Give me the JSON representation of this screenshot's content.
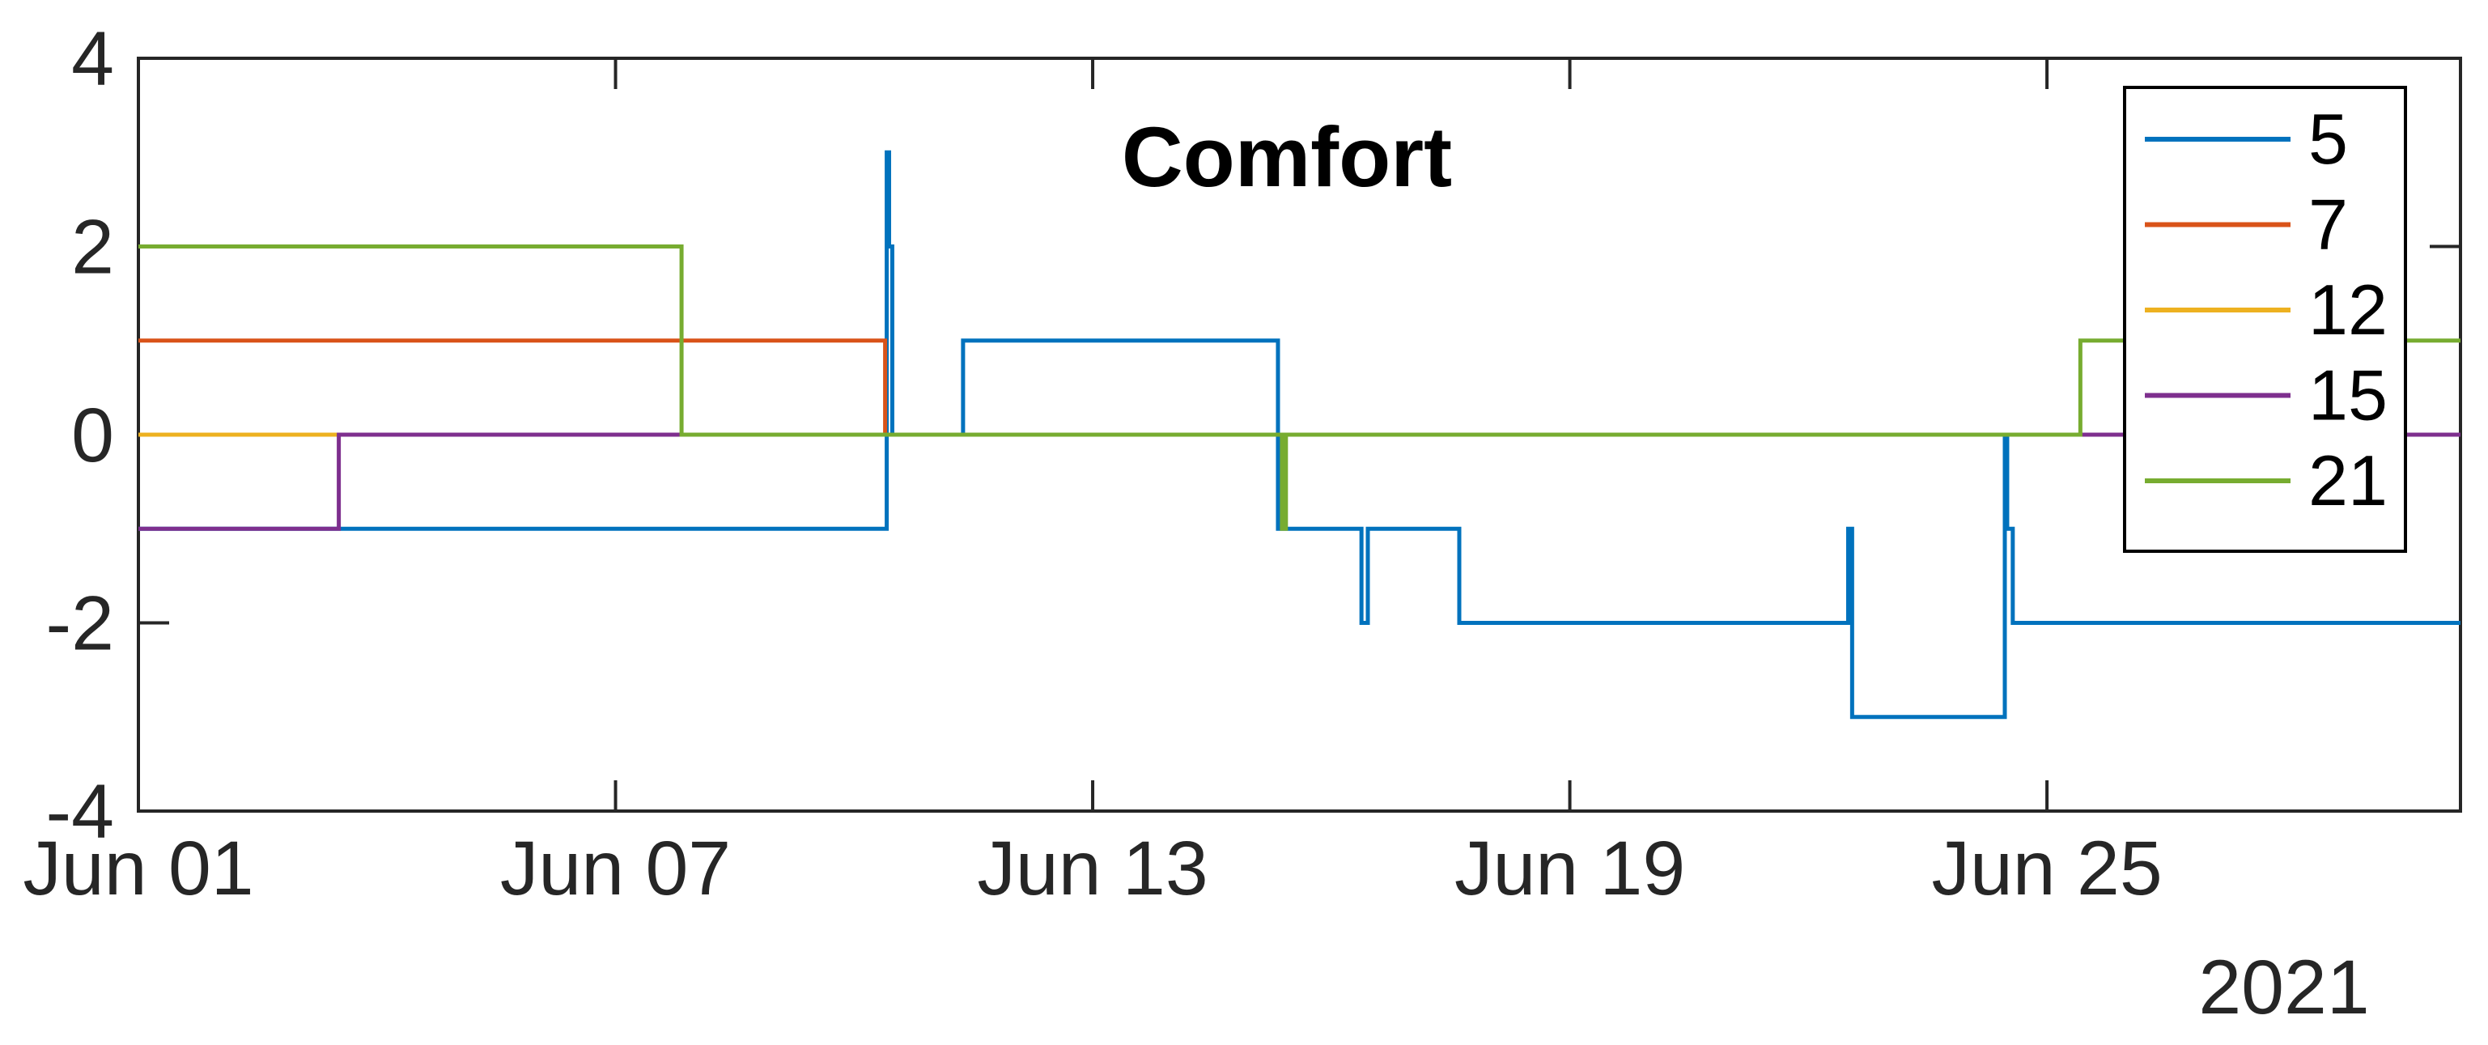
{
  "chart_data": {
    "type": "line",
    "title": "Comfort",
    "style": "matlab-step-plot",
    "background_color": "#FFFFFF",
    "axis_color": "#262626",
    "title_color": "#000000",
    "x_axis": {
      "year": "2021",
      "tick_labels": [
        "Jun 01",
        "Jun 07",
        "Jun 13",
        "Jun 19",
        "Jun 25"
      ],
      "tick_days": [
        0,
        6,
        12,
        18,
        24
      ],
      "range_days": [
        0,
        29.2
      ],
      "grid": false
    },
    "y_axis": {
      "ticks": [
        -4,
        -2,
        0,
        2,
        4
      ],
      "tick_labels": [
        "-4",
        "-2",
        "0",
        "2",
        "4"
      ],
      "range": [
        -4,
        4
      ],
      "grid": false
    },
    "legend": {
      "position": "top-right",
      "entries": [
        "5",
        "7",
        "12",
        "15",
        "21"
      ]
    },
    "series": [
      {
        "name": "5",
        "color": "#0072BD",
        "step_points": [
          [
            0,
            -1
          ],
          [
            9.41,
            3
          ],
          [
            9.44,
            2
          ],
          [
            9.48,
            0
          ],
          [
            10.37,
            1
          ],
          [
            14.33,
            -1
          ],
          [
            15.38,
            -2
          ],
          [
            15.46,
            -1
          ],
          [
            16.61,
            -2
          ],
          [
            21.5,
            -1
          ],
          [
            21.55,
            -3
          ],
          [
            23.47,
            0
          ],
          [
            23.5,
            -1
          ],
          [
            23.57,
            -2
          ]
        ]
      },
      {
        "name": "7",
        "color": "#D95319",
        "step_points": [
          [
            0,
            1
          ],
          [
            9.39,
            0
          ]
        ]
      },
      {
        "name": "12",
        "color": "#EDB120",
        "step_points": [
          [
            0,
            0
          ]
        ]
      },
      {
        "name": "15",
        "color": "#7E2F8E",
        "step_points": [
          [
            0,
            -1
          ],
          [
            2.52,
            0
          ]
        ]
      },
      {
        "name": "21",
        "color": "#77AC30",
        "step_points": [
          [
            0,
            2
          ],
          [
            6.83,
            0
          ],
          [
            14.38,
            -1
          ],
          [
            14.43,
            0
          ],
          [
            24.42,
            1
          ]
        ]
      }
    ]
  }
}
